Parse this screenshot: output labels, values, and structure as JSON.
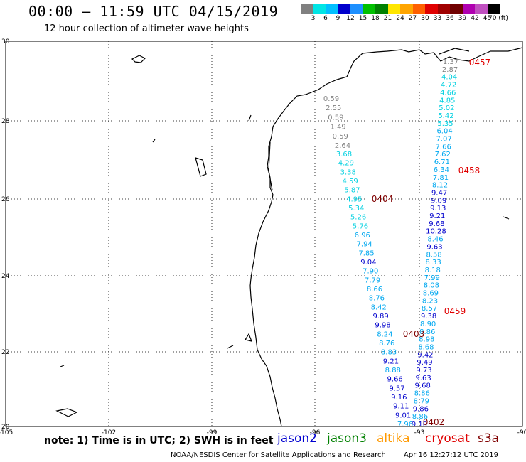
{
  "header": {
    "title": "00:00 — 11:59 UTC 04/15/2019",
    "subtitle": "12 hour collection of altimeter wave heights"
  },
  "colorbar": {
    "colors": [
      "#808080",
      "#00e5e5",
      "#00bfff",
      "#0000cd",
      "#1e90ff",
      "#00c000",
      "#008000",
      "#ffe600",
      "#ffa500",
      "#ff6000",
      "#e00000",
      "#a00000",
      "#700000",
      "#b000b0",
      "#c050c0",
      "#000000"
    ],
    "labels": [
      "3",
      "6",
      "9",
      "12",
      "15",
      "18",
      "21",
      "24",
      "27",
      "30",
      "33",
      "36",
      "39",
      "42",
      "45",
      "70 (ft)"
    ]
  },
  "map": {
    "lon_ticks": [
      "-105",
      "-102",
      "-99",
      "-96",
      "-93",
      "-90"
    ],
    "lat_ticks": [
      "30",
      "28",
      "26",
      "24",
      "22",
      "20"
    ]
  },
  "passes": [
    {
      "id": "0457",
      "color": "#e00000"
    },
    {
      "id": "0458",
      "color": "#e00000"
    },
    {
      "id": "0459",
      "color": "#e00000"
    },
    {
      "id": "0404",
      "color": "#800000"
    },
    {
      "id": "0403",
      "color": "#800000"
    },
    {
      "id": "0402",
      "color": "#800000"
    }
  ],
  "tracks": {
    "gray_track": {
      "color": "#808080",
      "values": [
        "0.59",
        "2.55",
        "0.59",
        "1.49",
        "0.59",
        "2.64"
      ]
    },
    "west_track": {
      "values": [
        "3.68",
        "4.29",
        "3.38",
        "4.59",
        "5.87",
        "4.95",
        "5.34",
        "5.26",
        "5.76",
        "6.96",
        "7.94",
        "7.85",
        "9.04",
        "7.90",
        "7.79",
        "8.66",
        "8.76",
        "8.42",
        "9.89",
        "9.98",
        "8.24",
        "8.76",
        "8.83",
        "9.21",
        "8.88",
        "9.66",
        "9.57",
        "9.16",
        "9.11",
        "9.01",
        "7.96"
      ]
    },
    "east_track": {
      "values": [
        "1.37",
        "2.87",
        "4.04",
        "4.72",
        "4.66",
        "4.85",
        "5.02",
        "5.42",
        "5.35",
        "6.04",
        "7.07",
        "7.66",
        "7.62",
        "6.71",
        "6.34",
        "7.81",
        "8.12",
        "9.47",
        "9.09",
        "9.13",
        "9.21",
        "9.68",
        "10.28",
        "8.46",
        "9.63",
        "8.58",
        "8.33",
        "8.18",
        "7.99",
        "8.08",
        "8.69",
        "8.23",
        "8.57",
        "9.38",
        "8.90",
        "8.86",
        "8.98",
        "8.68",
        "9.42",
        "9.49",
        "9.73",
        "9.63",
        "9.68",
        "8.86",
        "8.79",
        "9.86",
        "8.86",
        "9.10"
      ]
    }
  },
  "footer": {
    "note": "note: 1) Time is in UTC; 2) SWH is in feet",
    "satellites": [
      {
        "name": "jason2",
        "color": "#0000d0"
      },
      {
        "name": "jason3",
        "color": "#008000"
      },
      {
        "name": "altika",
        "color": "#ff9900"
      },
      {
        "name": "cryosat",
        "color": "#e00000"
      },
      {
        "name": "s3a",
        "color": "#800000"
      }
    ],
    "credit": "NOAA/NESDIS Center for Satellite Applications and Research",
    "timestamp": "Apr 16 12:27:12 UTC 2019"
  }
}
